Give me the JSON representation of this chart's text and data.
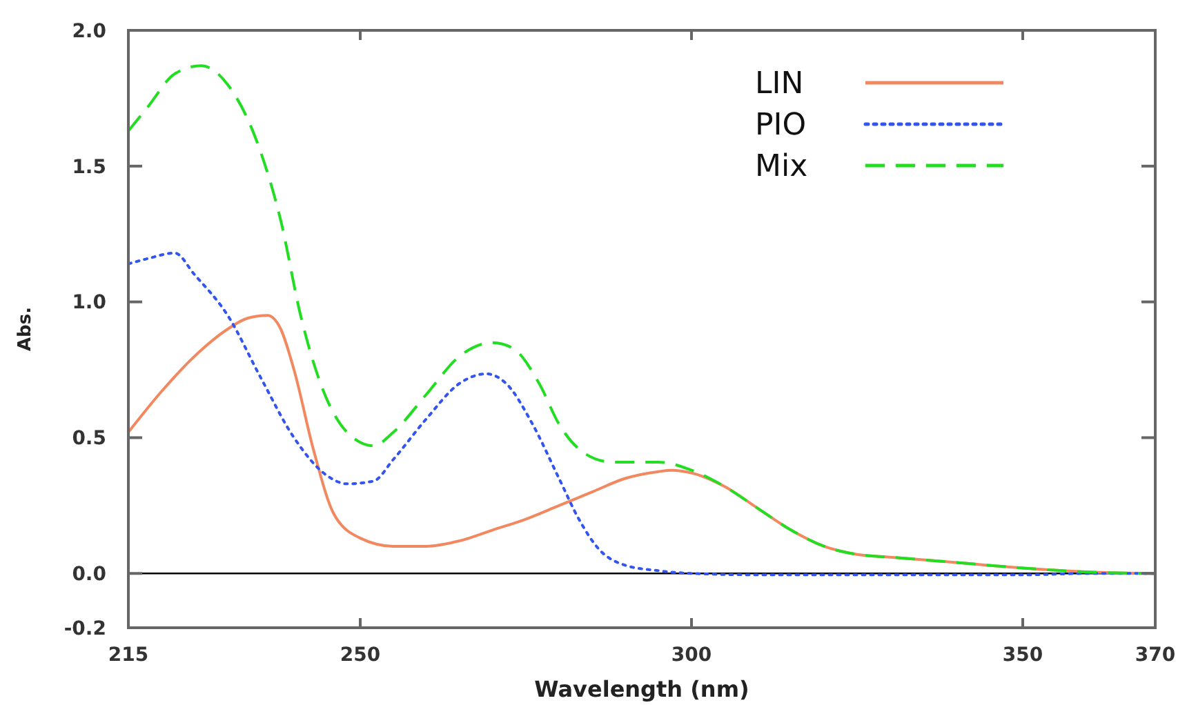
{
  "chart_data": {
    "type": "line",
    "xlabel": "Wavelength (nm)",
    "ylabel": "Abs.",
    "xlim": [
      215,
      370
    ],
    "xticks": [
      215,
      250,
      300,
      350,
      370
    ],
    "ylim": [
      -0.2,
      2.0
    ],
    "yticks": [
      {
        "value": -0.2,
        "label": "-0.2"
      },
      {
        "value": 0,
        "label": "0.0"
      },
      {
        "value": 0.5,
        "label": "0.5"
      },
      {
        "value": 1,
        "label": "1.0"
      },
      {
        "value": 1.5,
        "label": "1.5"
      },
      {
        "value": 2,
        "label": "2.0"
      }
    ],
    "grid": false,
    "legend": "top right",
    "ref_lines": [
      {
        "axis": "y",
        "value": 0,
        "color": "#000000",
        "line_style": "solid"
      }
    ],
    "series": [
      {
        "name": "LIN",
        "color": "#f28860",
        "line_style": "solid",
        "x": [
          215,
          220,
          225,
          230,
          233,
          236,
          238,
          240,
          243,
          246,
          250,
          255,
          260,
          265,
          270,
          275,
          280,
          285,
          290,
          295,
          297,
          300,
          305,
          310,
          315,
          320,
          325,
          330,
          340,
          350,
          360,
          370
        ],
        "values": [
          0.52,
          0.67,
          0.8,
          0.9,
          0.94,
          0.95,
          0.9,
          0.75,
          0.45,
          0.22,
          0.13,
          0.1,
          0.1,
          0.12,
          0.16,
          0.2,
          0.25,
          0.3,
          0.35,
          0.375,
          0.38,
          0.37,
          0.32,
          0.24,
          0.16,
          0.1,
          0.07,
          0.06,
          0.04,
          0.02,
          0.005,
          0
        ]
      },
      {
        "name": "PIO",
        "color": "#3355ee",
        "line_style": "dotted",
        "x": [
          215,
          218,
          222,
          225,
          230,
          235,
          240,
          245,
          248,
          252,
          255,
          260,
          265,
          269,
          272,
          276,
          280,
          283,
          286,
          290,
          295,
          300,
          310,
          330,
          350,
          360,
          370
        ],
        "values": [
          1.14,
          1.16,
          1.18,
          1.1,
          0.95,
          0.72,
          0.5,
          0.36,
          0.33,
          0.34,
          0.42,
          0.57,
          0.7,
          0.735,
          0.7,
          0.55,
          0.35,
          0.2,
          0.09,
          0.03,
          0.01,
          0,
          -0.005,
          -0.005,
          -0.005,
          0,
          0
        ]
      },
      {
        "name": "Mix",
        "color": "#22dd22",
        "line_style": "dashed",
        "x": [
          215,
          218,
          222,
          226,
          230,
          235,
          238,
          241,
          244,
          248,
          252,
          255,
          260,
          265,
          270,
          273,
          277,
          280,
          284,
          288,
          295,
          300,
          305,
          310,
          315,
          320,
          325,
          330,
          340,
          350,
          360,
          370
        ],
        "values": [
          1.63,
          1.72,
          1.84,
          1.87,
          1.8,
          1.55,
          1.3,
          0.95,
          0.7,
          0.52,
          0.47,
          0.52,
          0.66,
          0.8,
          0.85,
          0.83,
          0.7,
          0.55,
          0.44,
          0.41,
          0.41,
          0.38,
          0.32,
          0.24,
          0.16,
          0.1,
          0.07,
          0.06,
          0.04,
          0.02,
          0.005,
          0
        ]
      }
    ]
  }
}
